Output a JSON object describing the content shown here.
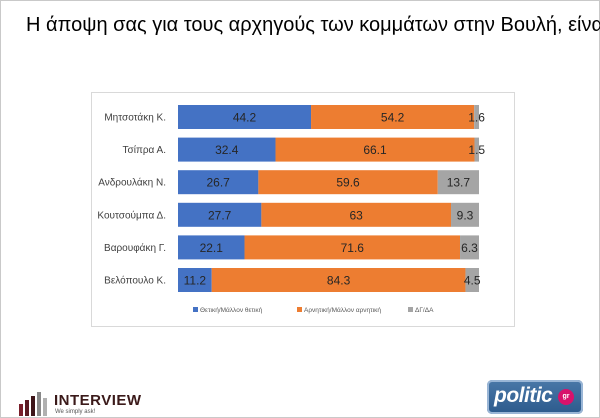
{
  "title": "Η άποψη σας για τους αρχηγούς των κομμάτων στην Βουλή,  είναι :",
  "colors": {
    "positive": "#4472c4",
    "negative": "#ed7d31",
    "dk": "#a5a5a5"
  },
  "chart_data": {
    "type": "bar",
    "orientation": "horizontal",
    "stacked": true,
    "percent_stacked": true,
    "categories": [
      "Μητσοτάκη Κ.",
      "Τσίπρα Α.",
      "Ανδρουλάκη Ν.",
      "Κουτσούμπα Δ.",
      "Βαρουφάκη Γ.",
      "Βελόπουλο Κ."
    ],
    "series": [
      {
        "name": "Θετική/Μάλλον θετική",
        "values": [
          44.2,
          32.4,
          26.7,
          27.7,
          22.1,
          11.2
        ],
        "color": "#4472c4"
      },
      {
        "name": "Αρνητική/Μάλλον αρνητική",
        "values": [
          54.2,
          66.1,
          59.6,
          63,
          71.6,
          84.3
        ],
        "color": "#ed7d31"
      },
      {
        "name": "ΔΓ/ΔΑ",
        "values": [
          1.6,
          1.5,
          13.7,
          9.3,
          6.3,
          4.5
        ],
        "color": "#a5a5a5"
      }
    ],
    "data_labels": true,
    "legend_position": "bottom",
    "grid": false
  },
  "branding": {
    "interview_name": "INTERVIEW",
    "interview_tag": "We simply ask!",
    "politic_name": "politic",
    "politic_suffix": "gr"
  }
}
